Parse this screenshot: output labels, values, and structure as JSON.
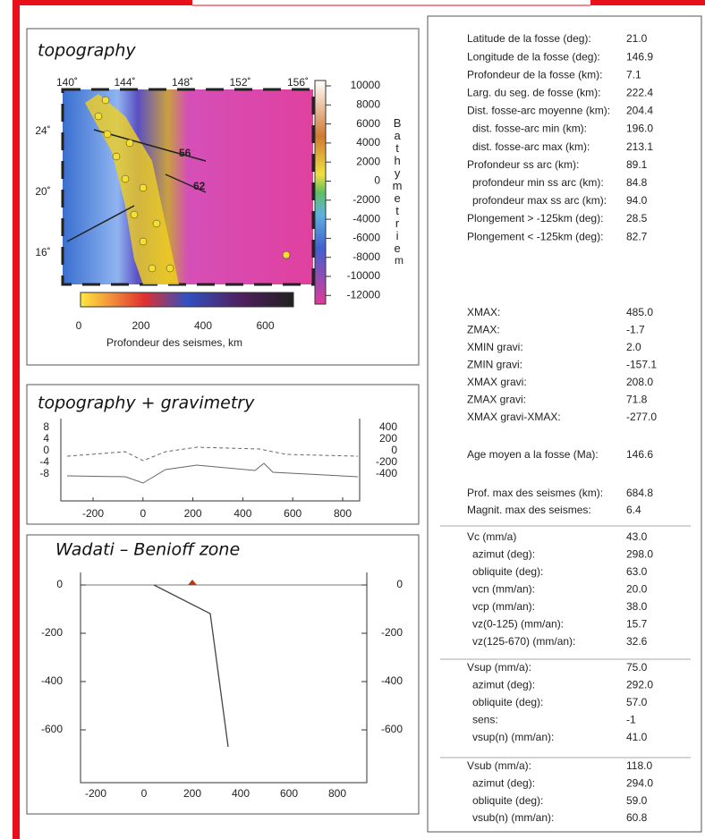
{
  "panels": [
    {
      "title": "topography",
      "lon_labels": [
        "140˚",
        "144˚",
        "148˚",
        "152˚",
        "156˚"
      ],
      "lat_labels": [
        "24˚",
        "20˚",
        "16˚"
      ],
      "section_labels": [
        "56",
        "62"
      ],
      "bathy_ticks": [
        "10000",
        "8000",
        "6000",
        "4000",
        "2000",
        "0",
        "-2000",
        "-4000",
        "-6000",
        "-8000",
        "-10000",
        "-12000"
      ],
      "bathy_label": "Bathymetrie",
      "bathy_unit": "m",
      "depth_ticks": [
        "0",
        "200",
        "400",
        "600"
      ],
      "depth_caption": "Profondeur des seismes, km"
    },
    {
      "title": "topography + gravimetry",
      "left_ticks": [
        "8",
        "4",
        "0",
        "-4",
        "-8"
      ],
      "right_ticks": [
        "400",
        "200",
        "0",
        "-200",
        "-400"
      ],
      "x_ticks": [
        "-200",
        "0",
        "200",
        "400",
        "600",
        "800"
      ]
    },
    {
      "title": "Wadati – Benioff zone",
      "left_ticks": [
        "0",
        "-200",
        "-400",
        "-600"
      ],
      "right_ticks": [
        "0",
        "-200",
        "-400",
        "-600"
      ],
      "x_ticks": [
        "-200",
        "0",
        "200",
        "400",
        "600",
        "800"
      ]
    }
  ],
  "table": {
    "groups": [
      {
        "rows": [
          [
            "Latitude de la fosse (deg):",
            "21.0"
          ],
          [
            "Longitude de la fosse (deg):",
            "146.9"
          ],
          [
            "Profondeur de la fosse (km):",
            "7.1"
          ],
          [
            "Larg. du seg. de fosse (km):",
            "222.4"
          ],
          [
            "Dist. fosse-arc moyenne (km):",
            "204.4"
          ],
          [
            "dist. fosse-arc min (km):",
            "196.0"
          ],
          [
            "dist. fosse-arc max (km):",
            "213.1"
          ],
          [
            "Profondeur ss arc (km):",
            "89.1"
          ],
          [
            "profondeur min ss arc (km):",
            "84.8"
          ],
          [
            "profondeur max ss arc (km):",
            "94.0"
          ],
          [
            "Plongement > -125km (deg):",
            "28.5"
          ],
          [
            "Plongement < -125km (deg):",
            "82.7"
          ]
        ]
      },
      {
        "rows": [
          [
            "XMAX:",
            "485.0"
          ],
          [
            "ZMAX:",
            "-1.7"
          ],
          [
            "XMIN gravi:",
            "2.0"
          ],
          [
            "ZMIN gravi:",
            "-157.1"
          ],
          [
            "XMAX gravi:",
            "208.0"
          ],
          [
            "ZMAX gravi:",
            "71.8"
          ],
          [
            "XMAX gravi-XMAX:",
            "-277.0"
          ]
        ]
      },
      {
        "rows": [
          [
            "Age moyen a la fosse (Ma):",
            "146.6"
          ]
        ]
      },
      {
        "rows": [
          [
            "Prof. max des seismes (km):",
            "684.8"
          ],
          [
            "Magnit. max des seismes:",
            "6.4"
          ]
        ]
      },
      {
        "rows": [
          [
            "Vc (mm/a)",
            "43.0"
          ],
          [
            "azimut (deg):",
            "298.0"
          ],
          [
            "obliquite (deg):",
            "63.0"
          ],
          [
            "vcn (mm/an):",
            "20.0"
          ],
          [
            "vcp (mm/an):",
            "38.0"
          ],
          [
            "vz(0-125) (mm/an):",
            "15.7"
          ],
          [
            "vz(125-670) (mm/an):",
            "32.6"
          ]
        ]
      },
      {
        "rows": [
          [
            "Vsup (mm/a):",
            "75.0"
          ],
          [
            "azimut (deg):",
            "292.0"
          ],
          [
            "obliquite (deg):",
            "57.0"
          ],
          [
            "sens:",
            "-1"
          ],
          [
            "vsup(n) (mm/an):",
            "41.0"
          ]
        ]
      },
      {
        "rows": [
          [
            "Vsub (mm/a):",
            "118.0"
          ],
          [
            "azimut (deg):",
            "294.0"
          ],
          [
            "obliquite (deg):",
            "59.0"
          ],
          [
            "vsub(n) (mm/an):",
            "60.8"
          ]
        ]
      }
    ]
  }
}
